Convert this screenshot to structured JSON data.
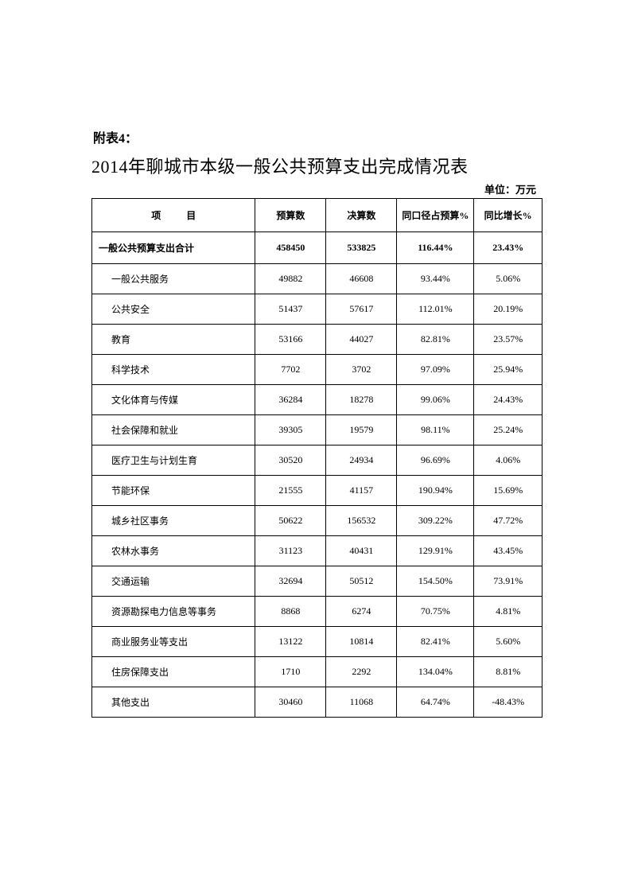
{
  "appendix_label": "附表4：",
  "main_title": "2014年聊城市本级一般公共预算支出完成情况表",
  "unit_label": "单位：万元",
  "table": {
    "headers": {
      "item": "项　目",
      "budget": "预算数",
      "actual": "决算数",
      "ratio": "同口径占预算%",
      "growth": "同比增长%"
    },
    "total_row": {
      "item": "一般公共预算支出合计",
      "budget": "458450",
      "actual": "533825",
      "ratio": "116.44%",
      "growth": "23.43%"
    },
    "rows": [
      {
        "item": "一般公共服务",
        "budget": "49882",
        "actual": "46608",
        "ratio": "93.44%",
        "growth": "5.06%"
      },
      {
        "item": "公共安全",
        "budget": "51437",
        "actual": "57617",
        "ratio": "112.01%",
        "growth": "20.19%"
      },
      {
        "item": "教育",
        "budget": "53166",
        "actual": "44027",
        "ratio": "82.81%",
        "growth": "23.57%"
      },
      {
        "item": "科学技术",
        "budget": "7702",
        "actual": "3702",
        "ratio": "97.09%",
        "growth": "25.94%"
      },
      {
        "item": "文化体育与传媒",
        "budget": "36284",
        "actual": "18278",
        "ratio": "99.06%",
        "growth": "24.43%"
      },
      {
        "item": "社会保障和就业",
        "budget": "39305",
        "actual": "19579",
        "ratio": "98.11%",
        "growth": "25.24%"
      },
      {
        "item": "医疗卫生与计划生育",
        "budget": "30520",
        "actual": "24934",
        "ratio": "96.69%",
        "growth": "4.06%"
      },
      {
        "item": "节能环保",
        "budget": "21555",
        "actual": "41157",
        "ratio": "190.94%",
        "growth": "15.69%"
      },
      {
        "item": "城乡社区事务",
        "budget": "50622",
        "actual": "156532",
        "ratio": "309.22%",
        "growth": "47.72%"
      },
      {
        "item": "农林水事务",
        "budget": "31123",
        "actual": "40431",
        "ratio": "129.91%",
        "growth": "43.45%"
      },
      {
        "item": "交通运输",
        "budget": "32694",
        "actual": "50512",
        "ratio": "154.50%",
        "growth": "73.91%"
      },
      {
        "item": "资源勘探电力信息等事务",
        "budget": "8868",
        "actual": "6274",
        "ratio": "70.75%",
        "growth": "4.81%"
      },
      {
        "item": "商业服务业等支出",
        "budget": "13122",
        "actual": "10814",
        "ratio": "82.41%",
        "growth": "5.60%"
      },
      {
        "item": "住房保障支出",
        "budget": "1710",
        "actual": "2292",
        "ratio": "134.04%",
        "growth": "8.81%"
      },
      {
        "item": "其他支出",
        "budget": "30460",
        "actual": "11068",
        "ratio": "64.74%",
        "growth": "-48.43%"
      }
    ]
  }
}
